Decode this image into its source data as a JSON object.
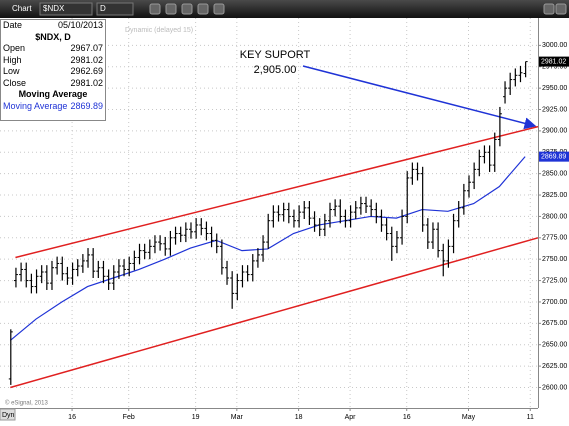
{
  "toolbar": {
    "title": "Chart",
    "symbol": "$NDX",
    "interval": "D"
  },
  "data_window": {
    "date_label": "Date",
    "date": "05/10/2013",
    "symbol": "$NDX, D",
    "open_label": "Open",
    "high_label": "High",
    "low_label": "Low",
    "close_label": "Close",
    "study": "Moving Average"
  },
  "chart_data": {
    "type": "ohlc",
    "subtitle": "Dynamic (delayed 15)",
    "credit": "© eSignal, 2013",
    "corner_label": "Dyn",
    "annotations": [
      {
        "text": "KEY SUPORT"
      },
      {
        "text": "2,905.00"
      }
    ],
    "ohlc": {
      "color": "#000000",
      "open": [
        2610,
        2725,
        2732,
        2738,
        2725,
        2718,
        2730,
        2735,
        2722,
        2740,
        2745,
        2733,
        2728,
        2738,
        2742,
        2748,
        2755,
        2736,
        2740,
        2730,
        2722,
        2735,
        2742,
        2738,
        2745,
        2752,
        2760,
        2758,
        2765,
        2770,
        2768,
        2762,
        2775,
        2780,
        2778,
        2785,
        2782,
        2790,
        2786,
        2780,
        2772,
        2765,
        2740,
        2728,
        2710,
        2725,
        2735,
        2732,
        2748,
        2755,
        2770,
        2795,
        2805,
        2802,
        2808,
        2800,
        2795,
        2805,
        2810,
        2798,
        2790,
        2785,
        2795,
        2808,
        2812,
        2800,
        2795,
        2805,
        2810,
        2815,
        2812,
        2808,
        2800,
        2790,
        2780,
        2765,
        2775,
        2800,
        2845,
        2855,
        2850,
        2790,
        2770,
        2785,
        2760,
        2748,
        2765,
        2795,
        2810,
        2830,
        2840,
        2855,
        2870,
        2875,
        2860,
        2890,
        2940,
        2950,
        2960,
        2965,
        2967.07
      ],
      "high": [
        2668,
        2740,
        2746,
        2746,
        2733,
        2738,
        2743,
        2743,
        2748,
        2753,
        2753,
        2741,
        2746,
        2750,
        2756,
        2763,
        2763,
        2748,
        2748,
        2738,
        2743,
        2750,
        2750,
        2753,
        2760,
        2768,
        2768,
        2773,
        2778,
        2778,
        2776,
        2783,
        2788,
        2788,
        2793,
        2793,
        2798,
        2798,
        2794,
        2788,
        2780,
        2773,
        2748,
        2736,
        2733,
        2743,
        2743,
        2756,
        2763,
        2778,
        2803,
        2813,
        2813,
        2816,
        2816,
        2808,
        2813,
        2818,
        2818,
        2806,
        2798,
        2803,
        2816,
        2820,
        2820,
        2808,
        2813,
        2818,
        2823,
        2823,
        2820,
        2816,
        2808,
        2798,
        2788,
        2783,
        2808,
        2853,
        2863,
        2863,
        2858,
        2798,
        2793,
        2793,
        2768,
        2773,
        2803,
        2818,
        2838,
        2848,
        2863,
        2878,
        2883,
        2883,
        2898,
        2928,
        2958,
        2968,
        2973,
        2976,
        2981.02
      ],
      "low": [
        2603,
        2717,
        2724,
        2717,
        2710,
        2710,
        2722,
        2714,
        2714,
        2732,
        2725,
        2720,
        2720,
        2730,
        2734,
        2740,
        2728,
        2728,
        2722,
        2714,
        2714,
        2727,
        2730,
        2730,
        2737,
        2744,
        2750,
        2750,
        2757,
        2760,
        2754,
        2754,
        2767,
        2770,
        2770,
        2774,
        2774,
        2778,
        2772,
        2764,
        2757,
        2732,
        2720,
        2692,
        2702,
        2717,
        2724,
        2724,
        2740,
        2747,
        2762,
        2787,
        2794,
        2794,
        2792,
        2787,
        2787,
        2797,
        2790,
        2782,
        2777,
        2777,
        2787,
        2800,
        2792,
        2787,
        2787,
        2797,
        2802,
        2804,
        2800,
        2792,
        2782,
        2772,
        2748,
        2757,
        2767,
        2792,
        2837,
        2842,
        2782,
        2762,
        2762,
        2752,
        2730,
        2740,
        2757,
        2787,
        2802,
        2822,
        2832,
        2847,
        2862,
        2852,
        2852,
        2882,
        2932,
        2942,
        2952,
        2957,
        2962.69
      ],
      "close": [
        2665,
        2732,
        2738,
        2725,
        2718,
        2730,
        2735,
        2722,
        2740,
        2745,
        2733,
        2728,
        2738,
        2742,
        2748,
        2755,
        2736,
        2740,
        2730,
        2722,
        2735,
        2742,
        2738,
        2745,
        2752,
        2760,
        2758,
        2765,
        2770,
        2768,
        2762,
        2775,
        2780,
        2778,
        2785,
        2782,
        2790,
        2786,
        2780,
        2772,
        2765,
        2740,
        2728,
        2710,
        2725,
        2735,
        2732,
        2748,
        2755,
        2770,
        2795,
        2805,
        2802,
        2808,
        2800,
        2795,
        2805,
        2810,
        2798,
        2790,
        2785,
        2795,
        2808,
        2812,
        2800,
        2795,
        2805,
        2810,
        2815,
        2812,
        2808,
        2800,
        2790,
        2780,
        2765,
        2775,
        2800,
        2845,
        2855,
        2850,
        2790,
        2770,
        2785,
        2760,
        2748,
        2765,
        2795,
        2810,
        2830,
        2840,
        2855,
        2870,
        2875,
        2860,
        2890,
        2920,
        2950,
        2960,
        2965,
        2968,
        2981.02
      ]
    },
    "series": [
      {
        "name": "Moving Average",
        "color": "#1f33d6",
        "x": [
          0,
          5,
          10,
          15,
          20,
          25,
          30,
          35,
          40,
          45,
          50,
          55,
          60,
          65,
          70,
          75,
          80,
          85,
          90,
          95,
          100
        ],
        "values": [
          2655,
          2680,
          2700,
          2718,
          2728,
          2738,
          2750,
          2763,
          2772,
          2760,
          2762,
          2780,
          2790,
          2795,
          2800,
          2798,
          2808,
          2806,
          2815,
          2835,
          2869.89
        ]
      }
    ],
    "trendlines": [
      {
        "color": "#e02020",
        "x": [
          1,
          102.5
        ],
        "values": [
          2752,
          2905
        ]
      },
      {
        "color": "#e02020",
        "x": [
          0,
          102.5
        ],
        "values": [
          2600,
          2775
        ]
      }
    ],
    "xlim": [
      -2,
      102.5
    ],
    "ylim": [
      2576,
      3032
    ],
    "xticks": [
      {
        "value": 12,
        "label": "16"
      },
      {
        "value": 23,
        "label": "Feb"
      },
      {
        "value": 36,
        "label": "19"
      },
      {
        "value": 44,
        "label": "Mar"
      },
      {
        "value": 56,
        "label": "18"
      },
      {
        "value": 66,
        "label": "Apr"
      },
      {
        "value": 77,
        "label": "16"
      },
      {
        "value": 89,
        "label": "May"
      },
      {
        "value": 101,
        "label": "11"
      }
    ],
    "yticks": [
      {
        "value": 2600,
        "label": "2600.00"
      },
      {
        "value": 2625,
        "label": "2625.00"
      },
      {
        "value": 2650,
        "label": "2650.00"
      },
      {
        "value": 2675,
        "label": "2675.00"
      },
      {
        "value": 2700,
        "label": "2700.00"
      },
      {
        "value": 2725,
        "label": "2725.00"
      },
      {
        "value": 2750,
        "label": "2750.00"
      },
      {
        "value": 2775,
        "label": "2775.00"
      },
      {
        "value": 2800,
        "label": "2800.00"
      },
      {
        "value": 2825,
        "label": "2825.00"
      },
      {
        "value": 2850,
        "label": "2850.00"
      },
      {
        "value": 2875,
        "label": "2875.00"
      },
      {
        "value": 2900,
        "label": "2900.00"
      },
      {
        "value": 2925,
        "label": "2925.00"
      },
      {
        "value": 2950,
        "label": "2950.00"
      },
      {
        "value": 2975,
        "label": "2975.00"
      },
      {
        "value": 3000,
        "label": "3000.00"
      }
    ],
    "grid": true
  }
}
